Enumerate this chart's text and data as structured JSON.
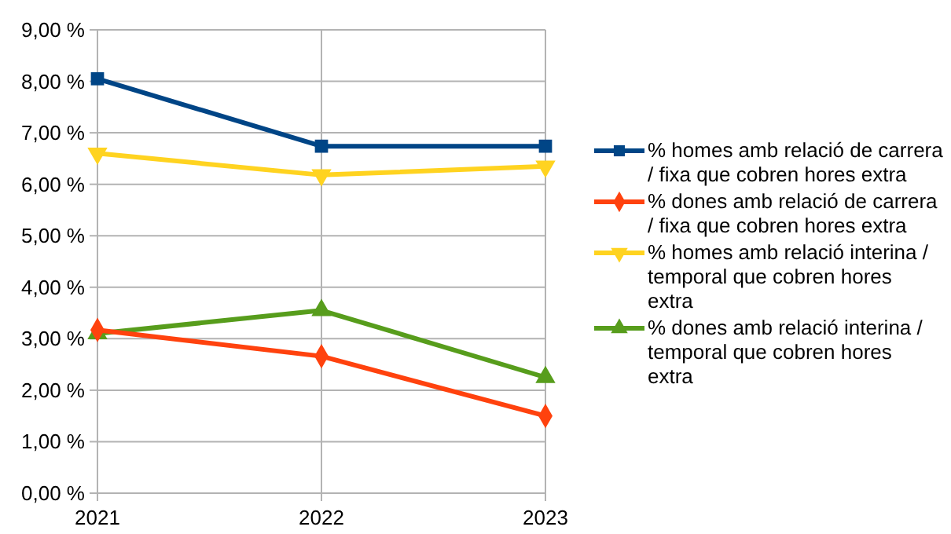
{
  "chart_data": {
    "type": "line",
    "categories": [
      "2021",
      "2022",
      "2023"
    ],
    "series": [
      {
        "name": "% homes amb relació de carrera / fixa que cobren hores extra",
        "color": "#004586",
        "values": [
          8.05,
          6.74,
          6.74
        ],
        "marker": "square"
      },
      {
        "name": "% dones amb relació de carrera / fixa que cobren hores extra",
        "color": "#ff420e",
        "values": [
          3.17,
          2.66,
          1.5
        ],
        "marker": "diamond"
      },
      {
        "name": "% homes amb relació interina / temporal que cobren hores extra",
        "color": "#ffd320",
        "values": [
          6.6,
          6.18,
          6.35
        ],
        "marker": "triangle-down"
      },
      {
        "name": "% dones amb relació interina / temporal que cobren hores extra",
        "color": "#579d1c",
        "values": [
          3.1,
          3.55,
          2.25
        ],
        "marker": "triangle"
      }
    ],
    "ylim": [
      0,
      9
    ],
    "yticks": [
      {
        "value": 0,
        "label": "0,00 %"
      },
      {
        "value": 1,
        "label": "1,00 %"
      },
      {
        "value": 2,
        "label": "2,00 %"
      },
      {
        "value": 3,
        "label": "3,00 %"
      },
      {
        "value": 4,
        "label": "4,00 %"
      },
      {
        "value": 5,
        "label": "5,00 %"
      },
      {
        "value": 6,
        "label": "6,00 %"
      },
      {
        "value": 7,
        "label": "7,00 %"
      },
      {
        "value": 8,
        "label": "8,00 %"
      },
      {
        "value": 9,
        "label": "9,00 %"
      }
    ],
    "grid": true,
    "legend": "right",
    "line_style": "solid"
  }
}
